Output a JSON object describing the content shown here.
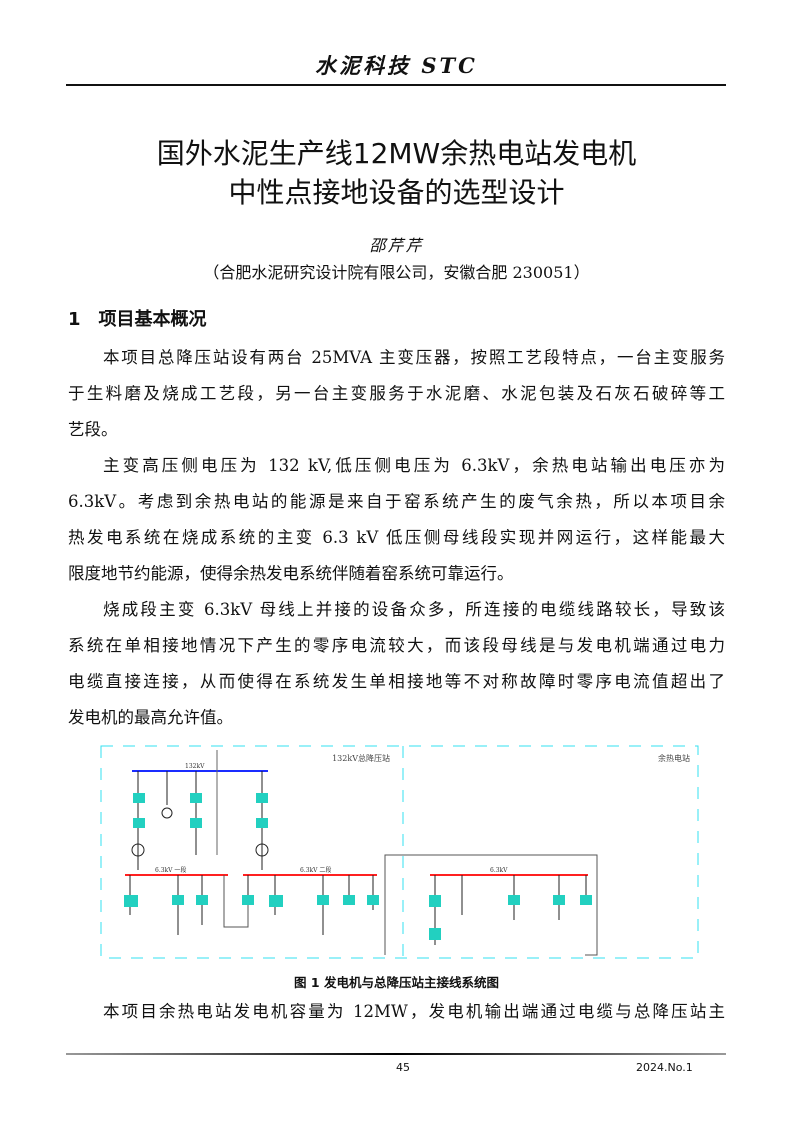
{
  "header": {
    "journal": "水泥科技  STC"
  },
  "title": {
    "line1": "国外水泥生产线12MW余热电站发电机",
    "line2": "中性点接地设备的选型设计"
  },
  "author": {
    "name": "邵芹芹",
    "affiliation": "（合肥水泥研究设计院有限公司，安徽合肥 230051）"
  },
  "section": {
    "heading": "1　项目基本概况"
  },
  "paragraphs": [
    [
      "本项目总降压站设有两台 25MVA 主变压器，按照工艺段特点，一台主变服务",
      "于生料磨及烧成工艺段，另一台主变服务于水泥磨、水泥包装及石灰石破碎等工",
      "艺段。"
    ],
    [
      "主变高压侧电压为 132 kV,低压侧电压为 6.3kV，余热电站输出电压亦为",
      "6.3kV。考虑到余热电站的能源是来自于窑系统产生的废气余热，所以本项目余",
      "热发电系统在烧成系统的主变 6.3 kV 低压侧母线段实现并网运行，这样能最大",
      "限度地节约能源，使得余热发电系统伴随着窑系统可靠运行。"
    ],
    [
      "烧成段主变 6.3kV 母线上并接的设备众多，所连接的电缆线路较长，导致该",
      "系统在单相接地情况下产生的零序电流较大，而该段母线是与发电机端通过电力",
      "电缆直接连接，从而使得在系统发生单相接地等不对称故障时零序电流值超出了",
      "发电机的最高允许值。"
    ],
    [
      "本项目余热电站发电机容量为 12MW，发电机输出端通过电缆与总降压站主"
    ]
  ],
  "figure": {
    "label_substation": "132kV总降压站",
    "label_plant": "余热电站",
    "bus_hv": "132kV",
    "bus_lv1": "6.3kV 一段",
    "bus_lv2": "6.3kV 二段",
    "bus_lv3": "6.3kV",
    "caption": "图 1  发电机与总降压站主接线系统图",
    "colors": {
      "frame": "#33e0f0",
      "hv_bus": "#1a2cff",
      "lv_bus": "#ff2020",
      "breaker": "#22d0c0"
    }
  },
  "footer": {
    "page": "45",
    "issue": "2024.No.1"
  }
}
